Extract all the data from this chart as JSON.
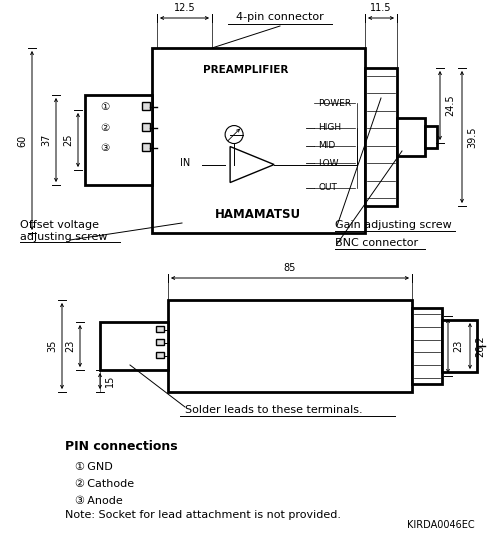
{
  "bg_color": "#ffffff",
  "lc": "#000000",
  "preamplifier_text": "PREAMPLIFIER",
  "power_text": "POWER",
  "high_text": "HIGH",
  "mid_text": "MID",
  "low_text": "LOW",
  "out_text": "OUT",
  "in_text": "IN",
  "hamamatsu_text": "HAMAMATSU",
  "label_4pin": "4-pin connector",
  "label_gain": "Gain adjusting screw",
  "label_bnc": "BNC connector",
  "label_offset": "Offset voltage\nadjusting screw",
  "label_solder": "Solder leads to these terminals.",
  "pin_title": "PIN connections",
  "pin1": "① GND",
  "pin2": "② Cathode",
  "pin3": "③ Anode",
  "note": "Note: Socket for lead attachment is not provided.",
  "code": "KIRDA0046EC",
  "dim_60": "60",
  "dim_37": "37",
  "dim_25": "25",
  "dim_12_5": "12.5",
  "dim_11_5": "11.5",
  "dim_24_5": "24.5",
  "dim_39_5": "39.5",
  "dim_85": "85",
  "dim_35": "35",
  "dim_23a": "23",
  "dim_15": "15",
  "dim_23b": "23",
  "dim_26_2": "26.2"
}
